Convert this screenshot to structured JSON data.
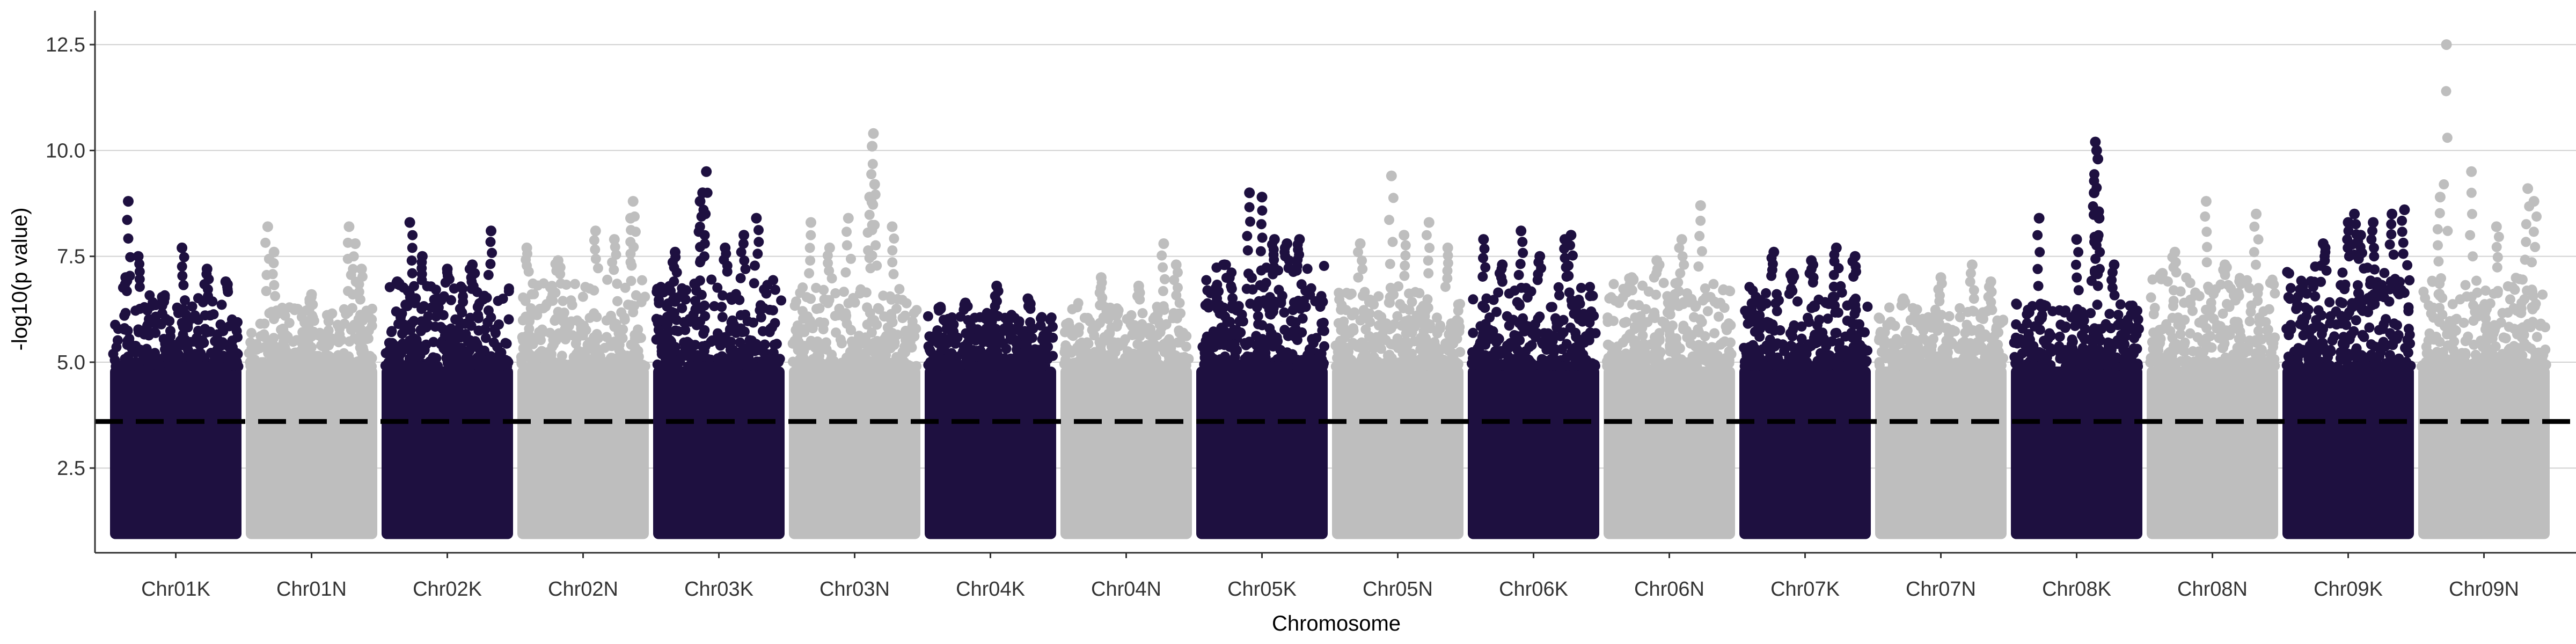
{
  "chart_data": {
    "type": "scatter",
    "subtype": "manhattan",
    "title": "",
    "xlabel": "Chromosome",
    "ylabel": "-log10(p value)",
    "ylim": [
      0.5,
      13.3
    ],
    "yticks": [
      2.5,
      5.0,
      7.5,
      10.0,
      12.5
    ],
    "ytick_labels": [
      "2.5",
      "5.0",
      "7.5",
      "10.0",
      "12.5"
    ],
    "grid": "horizontal major lines",
    "legend": "none",
    "threshold": {
      "value": 3.6,
      "style": "dashed",
      "color": "#000000"
    },
    "colors": {
      "dark": "#1e1040",
      "light": "#bebebe",
      "grid": "#d0d0d0",
      "axis": "#333333"
    },
    "categories": [
      "Chr01K",
      "Chr01N",
      "Chr02K",
      "Chr02N",
      "Chr03K",
      "Chr03N",
      "Chr04K",
      "Chr04N",
      "Chr05K",
      "Chr05N",
      "Chr06K",
      "Chr06N",
      "Chr07K",
      "Chr07N",
      "Chr08K",
      "Chr08N",
      "Chr09K",
      "Chr09N"
    ],
    "series": [
      {
        "category": "Chr01K",
        "color": "dark",
        "dense_max": 6.6,
        "peaks": [
          [
            0.12,
            8.8
          ],
          [
            0.2,
            7.5
          ],
          [
            0.1,
            7.0
          ],
          [
            0.55,
            7.7
          ],
          [
            0.75,
            7.2
          ],
          [
            0.9,
            6.9
          ],
          [
            0.4,
            6.5
          ]
        ]
      },
      {
        "category": "Chr01N",
        "color": "light",
        "dense_max": 6.3,
        "peaks": [
          [
            0.15,
            8.2
          ],
          [
            0.2,
            7.6
          ],
          [
            0.8,
            8.2
          ],
          [
            0.85,
            7.8
          ],
          [
            0.9,
            7.2
          ],
          [
            0.5,
            6.6
          ]
        ]
      },
      {
        "category": "Chr02K",
        "color": "dark",
        "dense_max": 6.8,
        "peaks": [
          [
            0.2,
            8.3
          ],
          [
            0.3,
            7.5
          ],
          [
            0.5,
            7.2
          ],
          [
            0.85,
            8.1
          ],
          [
            0.7,
            7.3
          ],
          [
            0.1,
            6.9
          ]
        ]
      },
      {
        "category": "Chr02N",
        "color": "light",
        "dense_max": 7.0,
        "peaks": [
          [
            0.05,
            7.7
          ],
          [
            0.6,
            8.1
          ],
          [
            0.9,
            8.8
          ],
          [
            0.88,
            8.4
          ],
          [
            0.3,
            7.4
          ],
          [
            0.75,
            7.9
          ]
        ]
      },
      {
        "category": "Chr03K",
        "color": "dark",
        "dense_max": 7.0,
        "peaks": [
          [
            0.4,
            9.5
          ],
          [
            0.37,
            9.0
          ],
          [
            0.35,
            8.8
          ],
          [
            0.8,
            8.4
          ],
          [
            0.15,
            7.6
          ],
          [
            0.55,
            7.7
          ],
          [
            0.7,
            8.0
          ]
        ]
      },
      {
        "category": "Chr03N",
        "color": "light",
        "dense_max": 6.8,
        "peaks": [
          [
            0.65,
            10.4
          ],
          [
            0.64,
            10.1
          ],
          [
            0.66,
            9.2
          ],
          [
            0.62,
            8.9
          ],
          [
            0.8,
            8.2
          ],
          [
            0.15,
            8.3
          ],
          [
            0.45,
            8.4
          ],
          [
            0.3,
            7.7
          ]
        ]
      },
      {
        "category": "Chr04K",
        "color": "dark",
        "dense_max": 6.2,
        "peaks": [
          [
            0.55,
            6.8
          ],
          [
            0.3,
            6.4
          ],
          [
            0.8,
            6.5
          ],
          [
            0.1,
            6.3
          ]
        ]
      },
      {
        "category": "Chr04N",
        "color": "light",
        "dense_max": 6.4,
        "peaks": [
          [
            0.8,
            7.8
          ],
          [
            0.9,
            7.3
          ],
          [
            0.3,
            7.0
          ],
          [
            0.6,
            6.8
          ]
        ]
      },
      {
        "category": "Chr05K",
        "color": "dark",
        "dense_max": 7.3,
        "peaks": [
          [
            0.4,
            9.0
          ],
          [
            0.5,
            8.9
          ],
          [
            0.6,
            7.9
          ],
          [
            0.7,
            7.8
          ],
          [
            0.8,
            7.9
          ],
          [
            0.2,
            7.3
          ]
        ]
      },
      {
        "category": "Chr05N",
        "color": "light",
        "dense_max": 6.8,
        "peaks": [
          [
            0.45,
            9.4
          ],
          [
            0.55,
            8.0
          ],
          [
            0.75,
            8.3
          ],
          [
            0.2,
            7.8
          ],
          [
            0.9,
            7.7
          ]
        ]
      },
      {
        "category": "Chr06K",
        "color": "dark",
        "dense_max": 6.8,
        "peaks": [
          [
            0.1,
            7.9
          ],
          [
            0.4,
            8.1
          ],
          [
            0.75,
            7.9
          ],
          [
            0.8,
            8.0
          ],
          [
            0.55,
            7.5
          ],
          [
            0.25,
            7.3
          ]
        ]
      },
      {
        "category": "Chr06N",
        "color": "light",
        "dense_max": 6.9,
        "peaks": [
          [
            0.75,
            8.7
          ],
          [
            0.6,
            7.9
          ],
          [
            0.4,
            7.4
          ],
          [
            0.2,
            7.0
          ]
        ]
      },
      {
        "category": "Chr07K",
        "color": "dark",
        "dense_max": 6.9,
        "peaks": [
          [
            0.25,
            7.6
          ],
          [
            0.55,
            7.4
          ],
          [
            0.75,
            7.7
          ],
          [
            0.9,
            7.5
          ],
          [
            0.4,
            7.1
          ]
        ]
      },
      {
        "category": "Chr07N",
        "color": "light",
        "dense_max": 6.3,
        "peaks": [
          [
            0.5,
            7.0
          ],
          [
            0.75,
            7.3
          ],
          [
            0.9,
            6.9
          ],
          [
            0.2,
            6.5
          ]
        ]
      },
      {
        "category": "Chr08K",
        "color": "dark",
        "dense_max": 6.4,
        "peaks": [
          [
            0.65,
            10.2
          ],
          [
            0.66,
            10.0
          ],
          [
            0.67,
            9.8
          ],
          [
            0.64,
            9.0
          ],
          [
            0.68,
            8.4
          ],
          [
            0.2,
            8.4
          ],
          [
            0.5,
            7.9
          ],
          [
            0.8,
            7.3
          ]
        ]
      },
      {
        "category": "Chr08N",
        "color": "light",
        "dense_max": 7.0,
        "peaks": [
          [
            0.45,
            8.8
          ],
          [
            0.2,
            7.6
          ],
          [
            0.6,
            7.3
          ],
          [
            0.85,
            8.5
          ],
          [
            0.1,
            7.1
          ]
        ]
      },
      {
        "category": "Chr09K",
        "color": "dark",
        "dense_max": 7.3,
        "peaks": [
          [
            0.55,
            8.5
          ],
          [
            0.5,
            8.3
          ],
          [
            0.7,
            8.3
          ],
          [
            0.95,
            8.6
          ],
          [
            0.6,
            8.0
          ],
          [
            0.3,
            7.8
          ],
          [
            0.85,
            8.5
          ]
        ]
      },
      {
        "category": "Chr09N",
        "color": "light",
        "dense_max": 7.0,
        "peaks": [
          [
            0.2,
            12.5
          ],
          [
            0.4,
            9.5
          ],
          [
            0.15,
            8.9
          ],
          [
            0.85,
            9.1
          ],
          [
            0.9,
            8.8
          ],
          [
            0.6,
            8.2
          ]
        ]
      }
    ]
  }
}
